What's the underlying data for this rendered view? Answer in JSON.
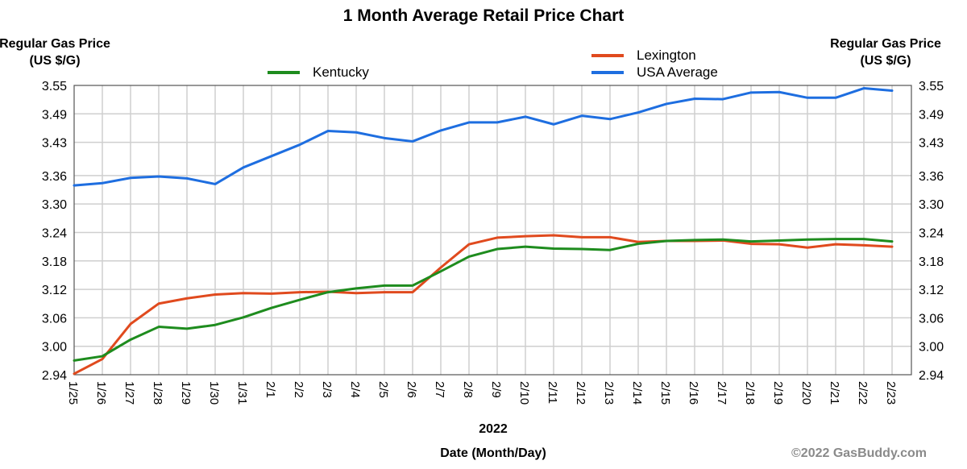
{
  "chart_data": {
    "type": "line",
    "title": "1 Month Average Retail Price Chart",
    "ylabel_left": "Regular Gas Price (US $/G)",
    "ylabel_right": "Regular Gas Price (US $/G)",
    "year_label": "2022",
    "xlabel": "Date (Month/Day)",
    "ylim": [
      2.94,
      3.55
    ],
    "y_ticks": [
      "2.94",
      "3.00",
      "3.06",
      "3.12",
      "3.18",
      "3.24",
      "3.30",
      "3.36",
      "3.43",
      "3.49",
      "3.55"
    ],
    "y_tick_values": [
      2.94,
      3.0,
      3.06,
      3.12,
      3.18,
      3.24,
      3.3,
      3.36,
      3.43,
      3.49,
      3.55
    ],
    "categories": [
      "1/25",
      "1/26",
      "1/27",
      "1/28",
      "1/29",
      "1/30",
      "1/31",
      "2/1",
      "2/2",
      "2/3",
      "2/4",
      "2/5",
      "2/6",
      "2/7",
      "2/8",
      "2/9",
      "2/10",
      "2/11",
      "2/12",
      "2/13",
      "2/14",
      "2/15",
      "2/16",
      "2/17",
      "2/18",
      "2/19",
      "2/20",
      "2/21",
      "2/22",
      "2/23"
    ],
    "grid": true,
    "legend_placement": "top",
    "series": [
      {
        "name": "Kentucky",
        "color": "#1e8c1e",
        "values": [
          2.97,
          2.979,
          3.014,
          3.041,
          3.037,
          3.045,
          3.061,
          3.081,
          3.098,
          3.114,
          3.122,
          3.128,
          3.128,
          3.158,
          3.189,
          3.205,
          3.21,
          3.206,
          3.205,
          3.203,
          3.216,
          3.222,
          3.224,
          3.225,
          3.221,
          3.223,
          3.225,
          3.226,
          3.226,
          3.221
        ]
      },
      {
        "name": "Lexington",
        "color": "#e04a1e",
        "values": [
          2.942,
          2.973,
          3.047,
          3.09,
          3.101,
          3.109,
          3.112,
          3.111,
          3.114,
          3.115,
          3.112,
          3.114,
          3.114,
          3.166,
          3.215,
          3.229,
          3.232,
          3.234,
          3.23,
          3.23,
          3.22,
          3.222,
          3.222,
          3.223,
          3.216,
          3.215,
          3.208,
          3.215,
          3.213,
          3.21
        ]
      },
      {
        "name": "USA Average",
        "color": "#1e6ee0",
        "values": [
          3.339,
          3.344,
          3.355,
          3.358,
          3.354,
          3.342,
          3.377,
          3.401,
          3.425,
          3.454,
          3.451,
          3.439,
          3.432,
          3.455,
          3.472,
          3.472,
          3.484,
          3.468,
          3.486,
          3.479,
          3.493,
          3.511,
          3.522,
          3.521,
          3.535,
          3.536,
          3.524,
          3.524,
          3.544,
          3.539
        ]
      }
    ]
  },
  "copyright": "©2022 GasBuddy.com"
}
